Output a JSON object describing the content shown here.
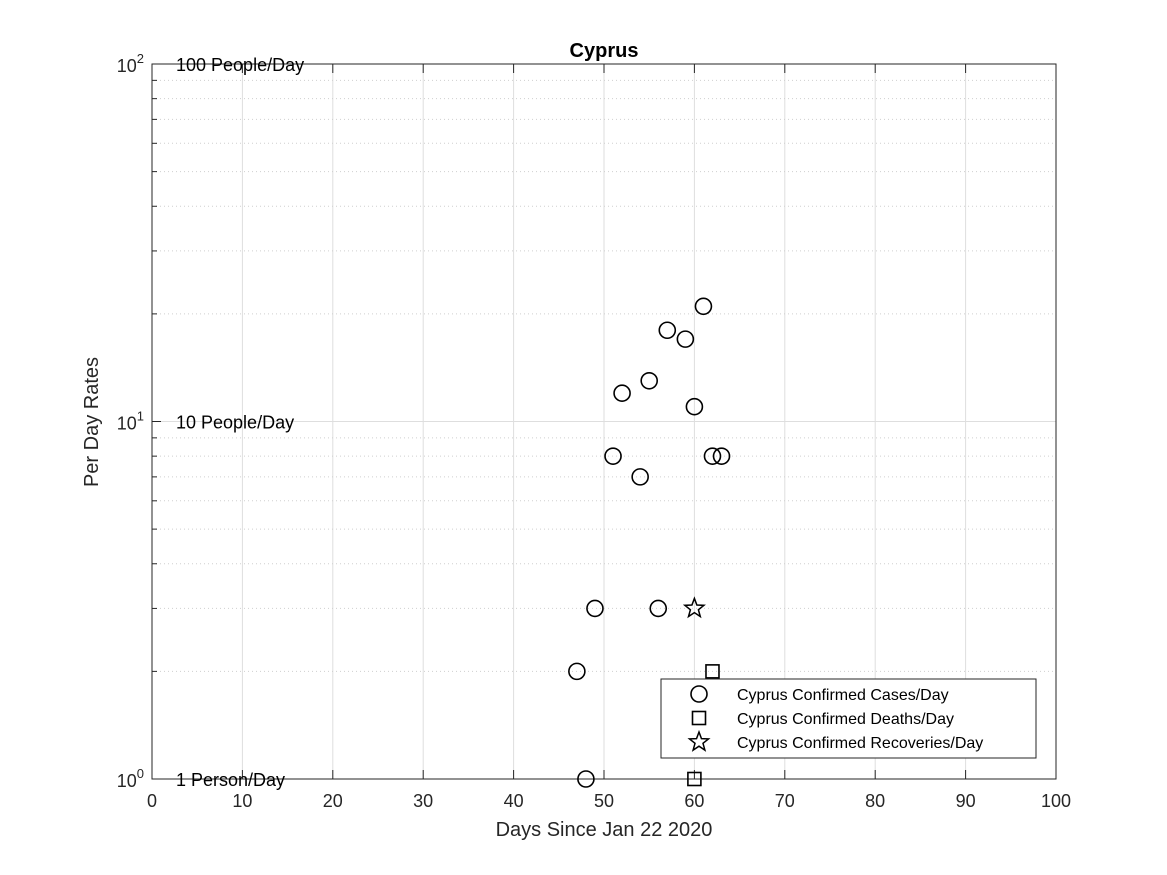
{
  "chart_data": {
    "type": "scatter",
    "title": "Cyprus",
    "xlabel": "Days Since Jan 22 2020",
    "ylabel": "Per Day Rates",
    "xlim": [
      0,
      100
    ],
    "ylim": [
      1,
      100
    ],
    "yscale": "log",
    "grid": true,
    "legend_position": "bottom-right",
    "x_ticks": [
      0,
      10,
      20,
      30,
      40,
      50,
      60,
      70,
      80,
      90,
      100
    ],
    "y_ticks": [
      {
        "value": 1,
        "base": "10",
        "exp": "0"
      },
      {
        "value": 10,
        "base": "10",
        "exp": "1"
      },
      {
        "value": 100,
        "base": "10",
        "exp": "2"
      }
    ],
    "annotations": [
      {
        "text": "100 People/Day",
        "value": 100
      },
      {
        "text": "10 People/Day",
        "value": 10
      },
      {
        "text": "1 Person/Day",
        "value": 1
      }
    ],
    "series": [
      {
        "name": "Cyprus Confirmed Cases/Day",
        "marker": "circle",
        "points": [
          {
            "x": 47,
            "y": 2
          },
          {
            "x": 48,
            "y": 1
          },
          {
            "x": 49,
            "y": 3
          },
          {
            "x": 51,
            "y": 8
          },
          {
            "x": 52,
            "y": 12
          },
          {
            "x": 54,
            "y": 7
          },
          {
            "x": 55,
            "y": 13
          },
          {
            "x": 56,
            "y": 3
          },
          {
            "x": 57,
            "y": 18
          },
          {
            "x": 59,
            "y": 17
          },
          {
            "x": 60,
            "y": 11
          },
          {
            "x": 61,
            "y": 21
          },
          {
            "x": 62,
            "y": 8
          },
          {
            "x": 63,
            "y": 8
          }
        ]
      },
      {
        "name": "Cyprus Confirmed Deaths/Day",
        "marker": "square",
        "points": [
          {
            "x": 60,
            "y": 1
          },
          {
            "x": 62,
            "y": 2
          }
        ]
      },
      {
        "name": "Cyprus Confirmed Recoveries/Day",
        "marker": "star",
        "points": [
          {
            "x": 60,
            "y": 3
          }
        ]
      }
    ]
  }
}
